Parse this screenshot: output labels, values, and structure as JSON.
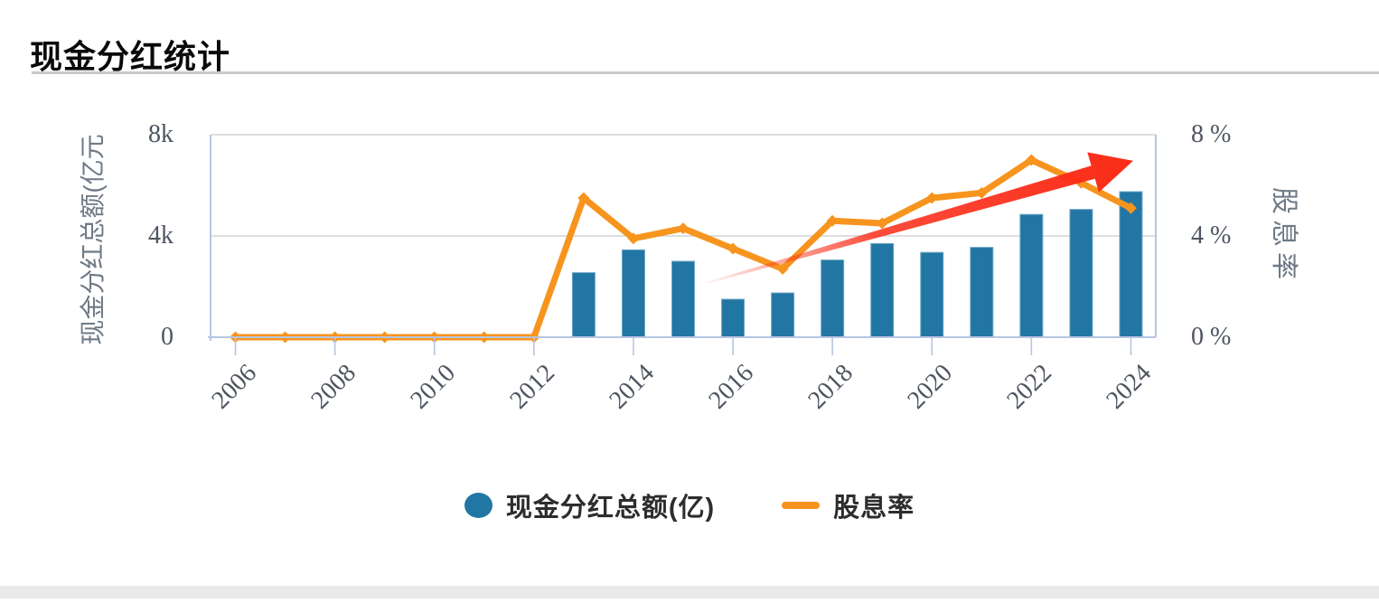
{
  "page": {
    "title": "现金分红统计"
  },
  "chart_data": {
    "type": "bar+line combo",
    "categories": [
      "2006",
      "2007",
      "2008",
      "2009",
      "2010",
      "2011",
      "2012",
      "2013",
      "2014",
      "2015",
      "2016",
      "2017",
      "2018",
      "2019",
      "2020",
      "2021",
      "2022",
      "2023",
      "2024"
    ],
    "series": [
      {
        "name": "现金分红总额(亿)",
        "type": "bar",
        "axis": "left",
        "color": "#2176a3",
        "values": [
          0,
          0,
          0,
          0,
          0,
          0,
          0,
          2550,
          3450,
          3000,
          1500,
          1750,
          3050,
          3700,
          3350,
          3550,
          4850,
          5050,
          5750
        ]
      },
      {
        "name": "股息率",
        "type": "line",
        "axis": "right",
        "color": "#f7941e",
        "values": [
          0,
          0,
          0,
          0,
          0,
          0,
          0,
          5.5,
          3.9,
          4.3,
          3.5,
          2.7,
          4.6,
          4.5,
          5.5,
          5.7,
          7.0,
          6.1,
          5.1
        ]
      }
    ],
    "left_axis": {
      "name": "现金分红总额(亿元",
      "max": 8000,
      "tick_labels": [
        "8k",
        "4k",
        "0"
      ],
      "tick_values": [
        8000,
        4000,
        0
      ]
    },
    "right_axis": {
      "name": "股息率",
      "max": 8,
      "tick_labels": [
        "8 %",
        "4 %",
        "0 %"
      ],
      "tick_values": [
        8,
        4,
        0
      ]
    },
    "x_tick_labels": [
      "2006",
      "2008",
      "2010",
      "2012",
      "2014",
      "2016",
      "2018",
      "2020",
      "2022",
      "2024"
    ],
    "grid": "horizontal lines at 4k and 8k",
    "annotation": {
      "type": "trend-arrow",
      "color": "#fb2c17",
      "from_frac": {
        "x": 0.525,
        "y": 0.732
      },
      "to_frac": {
        "x": 0.976,
        "y": 0.129
      }
    },
    "axis_line_color": "#b7c5e2",
    "grid_line_color": "#d4d4d4"
  },
  "legend": [
    {
      "label": "现金分红总额(亿)",
      "marker": "circle",
      "color": "#2176a3"
    },
    {
      "label": "股息率",
      "marker": "line",
      "color": "#f7941e"
    }
  ]
}
